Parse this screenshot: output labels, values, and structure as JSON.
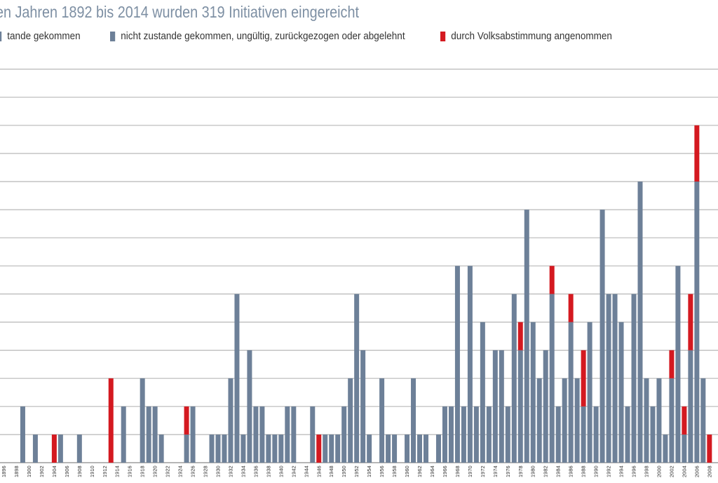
{
  "chart_data": {
    "type": "bar",
    "stacked": true,
    "title": "en Jahren 1892 bis 2014 wurden 319 Initiativen eingereicht",
    "xlabel": "",
    "ylabel": "",
    "ylim": [
      0,
      14
    ],
    "grid": true,
    "legend_placement": "top",
    "legend": [
      {
        "label": "tande gekommen",
        "color": "#6d8098"
      },
      {
        "label": "nicht zustande gekommen, ungültig, zurückgezogen oder abgelehnt",
        "color": "#6d8098"
      },
      {
        "label": "durch Volksabstimmung angenommen",
        "color": "#d41920"
      }
    ],
    "x_ticks": [
      "1896",
      "1898",
      "1900",
      "1902",
      "1904",
      "1906",
      "1908",
      "1910",
      "1912",
      "1914",
      "1916",
      "1918",
      "1920",
      "1922",
      "1924",
      "1926",
      "1928",
      "1930",
      "1932",
      "1934",
      "1936",
      "1938",
      "1940",
      "1942",
      "1944",
      "1946",
      "1948",
      "1950",
      "1952",
      "1954",
      "1956",
      "1958",
      "1960",
      "1962",
      "1964",
      "1966",
      "1968",
      "1970",
      "1972",
      "1974",
      "1976",
      "1978",
      "1980",
      "1982",
      "1984",
      "1986",
      "1988",
      "1990",
      "1992",
      "1994",
      "1996",
      "1998",
      "2000",
      "2002",
      "2004",
      "2006",
      "2008"
    ],
    "series": [
      {
        "color": "#6d8098",
        "x": [
          1899,
          1901,
          1903,
          1905,
          1908,
          1915,
          1918,
          1919,
          1920,
          1921,
          1925,
          1926,
          1929,
          1930,
          1931,
          1932,
          1933,
          1934,
          1935,
          1936,
          1937,
          1938,
          1939,
          1940,
          1941,
          1942,
          1945,
          1947,
          1948,
          1949,
          1950,
          1951,
          1952,
          1953,
          1954,
          1956,
          1957,
          1958,
          1960,
          1961,
          1962,
          1963,
          1965,
          1966,
          1967,
          1968,
          1969,
          1970,
          1971,
          1972,
          1973,
          1974,
          1975,
          1976,
          1977,
          1978,
          1979,
          1980,
          1981,
          1982,
          1983,
          1984,
          1985,
          1986,
          1987,
          1988,
          1989,
          1990,
          1991,
          1992,
          1993,
          1994,
          1995,
          1996,
          1997,
          1998,
          1999,
          2000,
          2001,
          2002,
          2003,
          2004,
          2005,
          2006,
          2007
        ],
        "values": [
          2,
          1,
          0,
          1,
          1,
          2,
          3,
          2,
          2,
          1,
          1,
          2,
          1,
          1,
          1,
          3,
          6,
          1,
          4,
          2,
          2,
          1,
          1,
          1,
          2,
          2,
          2,
          1,
          1,
          1,
          2,
          3,
          6,
          4,
          1,
          3,
          1,
          1,
          1,
          3,
          1,
          1,
          1,
          2,
          2,
          7,
          2,
          7,
          2,
          5,
          2,
          4,
          4,
          2,
          6,
          4,
          9,
          5,
          3,
          4,
          6,
          2,
          3,
          5,
          3,
          2,
          5,
          2,
          9,
          6,
          6,
          5,
          2,
          6,
          10,
          3,
          2,
          3,
          1,
          3,
          7,
          1,
          4,
          10,
          3
        ]
      },
      {
        "color": "#d41920",
        "x": [
          1904,
          1913,
          1925,
          1946,
          1978,
          1983,
          1986,
          1988,
          2002,
          2004,
          2005,
          2006,
          2008
        ],
        "values": [
          1,
          3,
          1,
          1,
          1,
          1,
          1,
          2,
          1,
          1,
          2,
          2,
          1
        ]
      }
    ]
  }
}
